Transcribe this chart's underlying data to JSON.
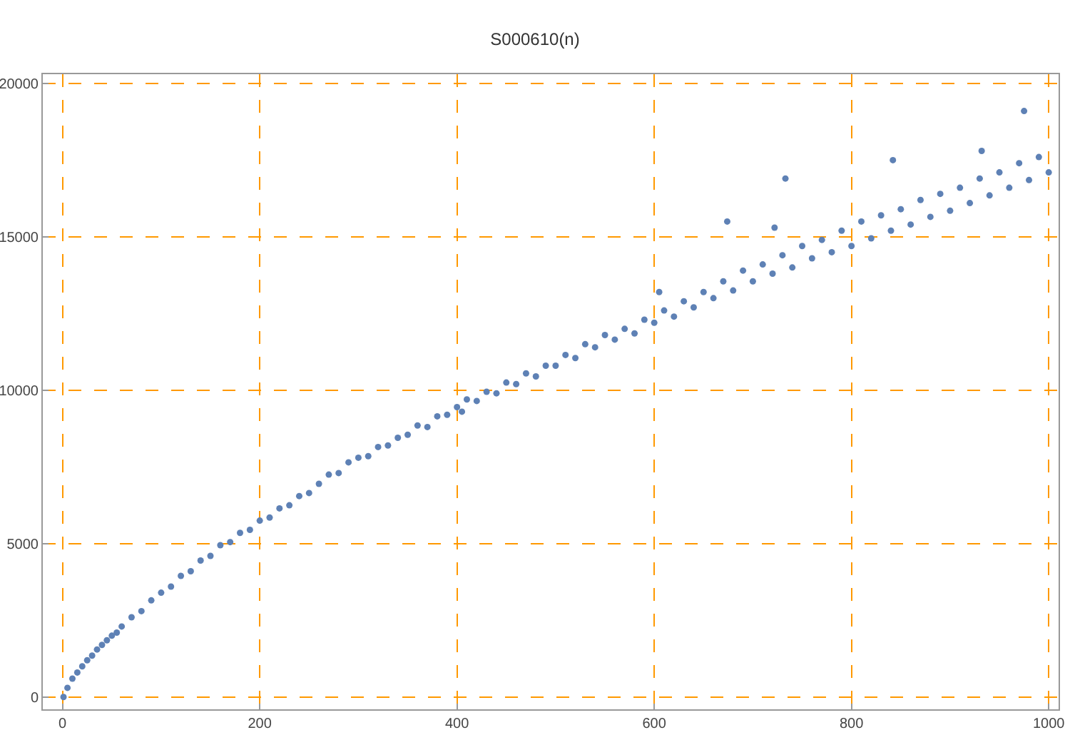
{
  "chart_data": {
    "type": "scatter",
    "title": "S000610(n)",
    "x": [
      1,
      5,
      10,
      15,
      20,
      25,
      30,
      35,
      40,
      45,
      50,
      55,
      60,
      70,
      80,
      90,
      100,
      110,
      120,
      130,
      140,
      150,
      160,
      170,
      180,
      190,
      200,
      210,
      220,
      230,
      240,
      250,
      260,
      270,
      280,
      290,
      300,
      310,
      320,
      330,
      340,
      350,
      360,
      370,
      380,
      390,
      400,
      405,
      410,
      420,
      430,
      440,
      450,
      460,
      470,
      480,
      490,
      500,
      510,
      520,
      530,
      540,
      550,
      560,
      570,
      580,
      590,
      600,
      605,
      610,
      620,
      630,
      640,
      650,
      660,
      670,
      674,
      680,
      690,
      700,
      710,
      720,
      722,
      730,
      733,
      740,
      750,
      760,
      770,
      780,
      790,
      800,
      810,
      820,
      830,
      840,
      842,
      850,
      860,
      870,
      880,
      890,
      900,
      910,
      920,
      930,
      932,
      940,
      950,
      960,
      970,
      975,
      980,
      990,
      1000
    ],
    "series": [
      {
        "color": "#5e81b5",
        "values": [
          0,
          300,
          600,
          800,
          1000,
          1200,
          1350,
          1550,
          1700,
          1850,
          2000,
          2100,
          2300,
          2600,
          2800,
          3150,
          3400,
          3600,
          3950,
          4100,
          4450,
          4600,
          4950,
          5050,
          5350,
          5450,
          5750,
          5850,
          6150,
          6250,
          6550,
          6650,
          6950,
          7250,
          7300,
          7650,
          7800,
          7850,
          8150,
          8200,
          8450,
          8550,
          8850,
          8800,
          9150,
          9200,
          9450,
          9300,
          9700,
          9650,
          9950,
          9900,
          10250,
          10200,
          10550,
          10450,
          10800,
          10800,
          11150,
          11050,
          11500,
          11400,
          11800,
          11650,
          12000,
          11850,
          12300,
          12200,
          13200,
          12600,
          12400,
          12900,
          12700,
          13200,
          13000,
          13550,
          15500,
          13250,
          13900,
          13550,
          14100,
          13800,
          15300,
          14400,
          16900,
          14000,
          14700,
          14300,
          14900,
          14500,
          15200,
          14700,
          15500,
          14950,
          15700,
          15200,
          17500,
          15900,
          15400,
          16200,
          15650,
          16400,
          15850,
          16600,
          16100,
          16900,
          17800,
          16350,
          17100,
          16600,
          17400,
          19100,
          16850,
          17600,
          17100
        ]
      }
    ],
    "xlim": [
      -20,
      1010
    ],
    "ylim": [
      -400,
      20300
    ],
    "xticks": [
      0,
      200,
      400,
      600,
      800,
      1000
    ],
    "yticks": [
      0,
      5000,
      10000,
      15000,
      20000
    ],
    "grid": true,
    "marker": "circle"
  }
}
